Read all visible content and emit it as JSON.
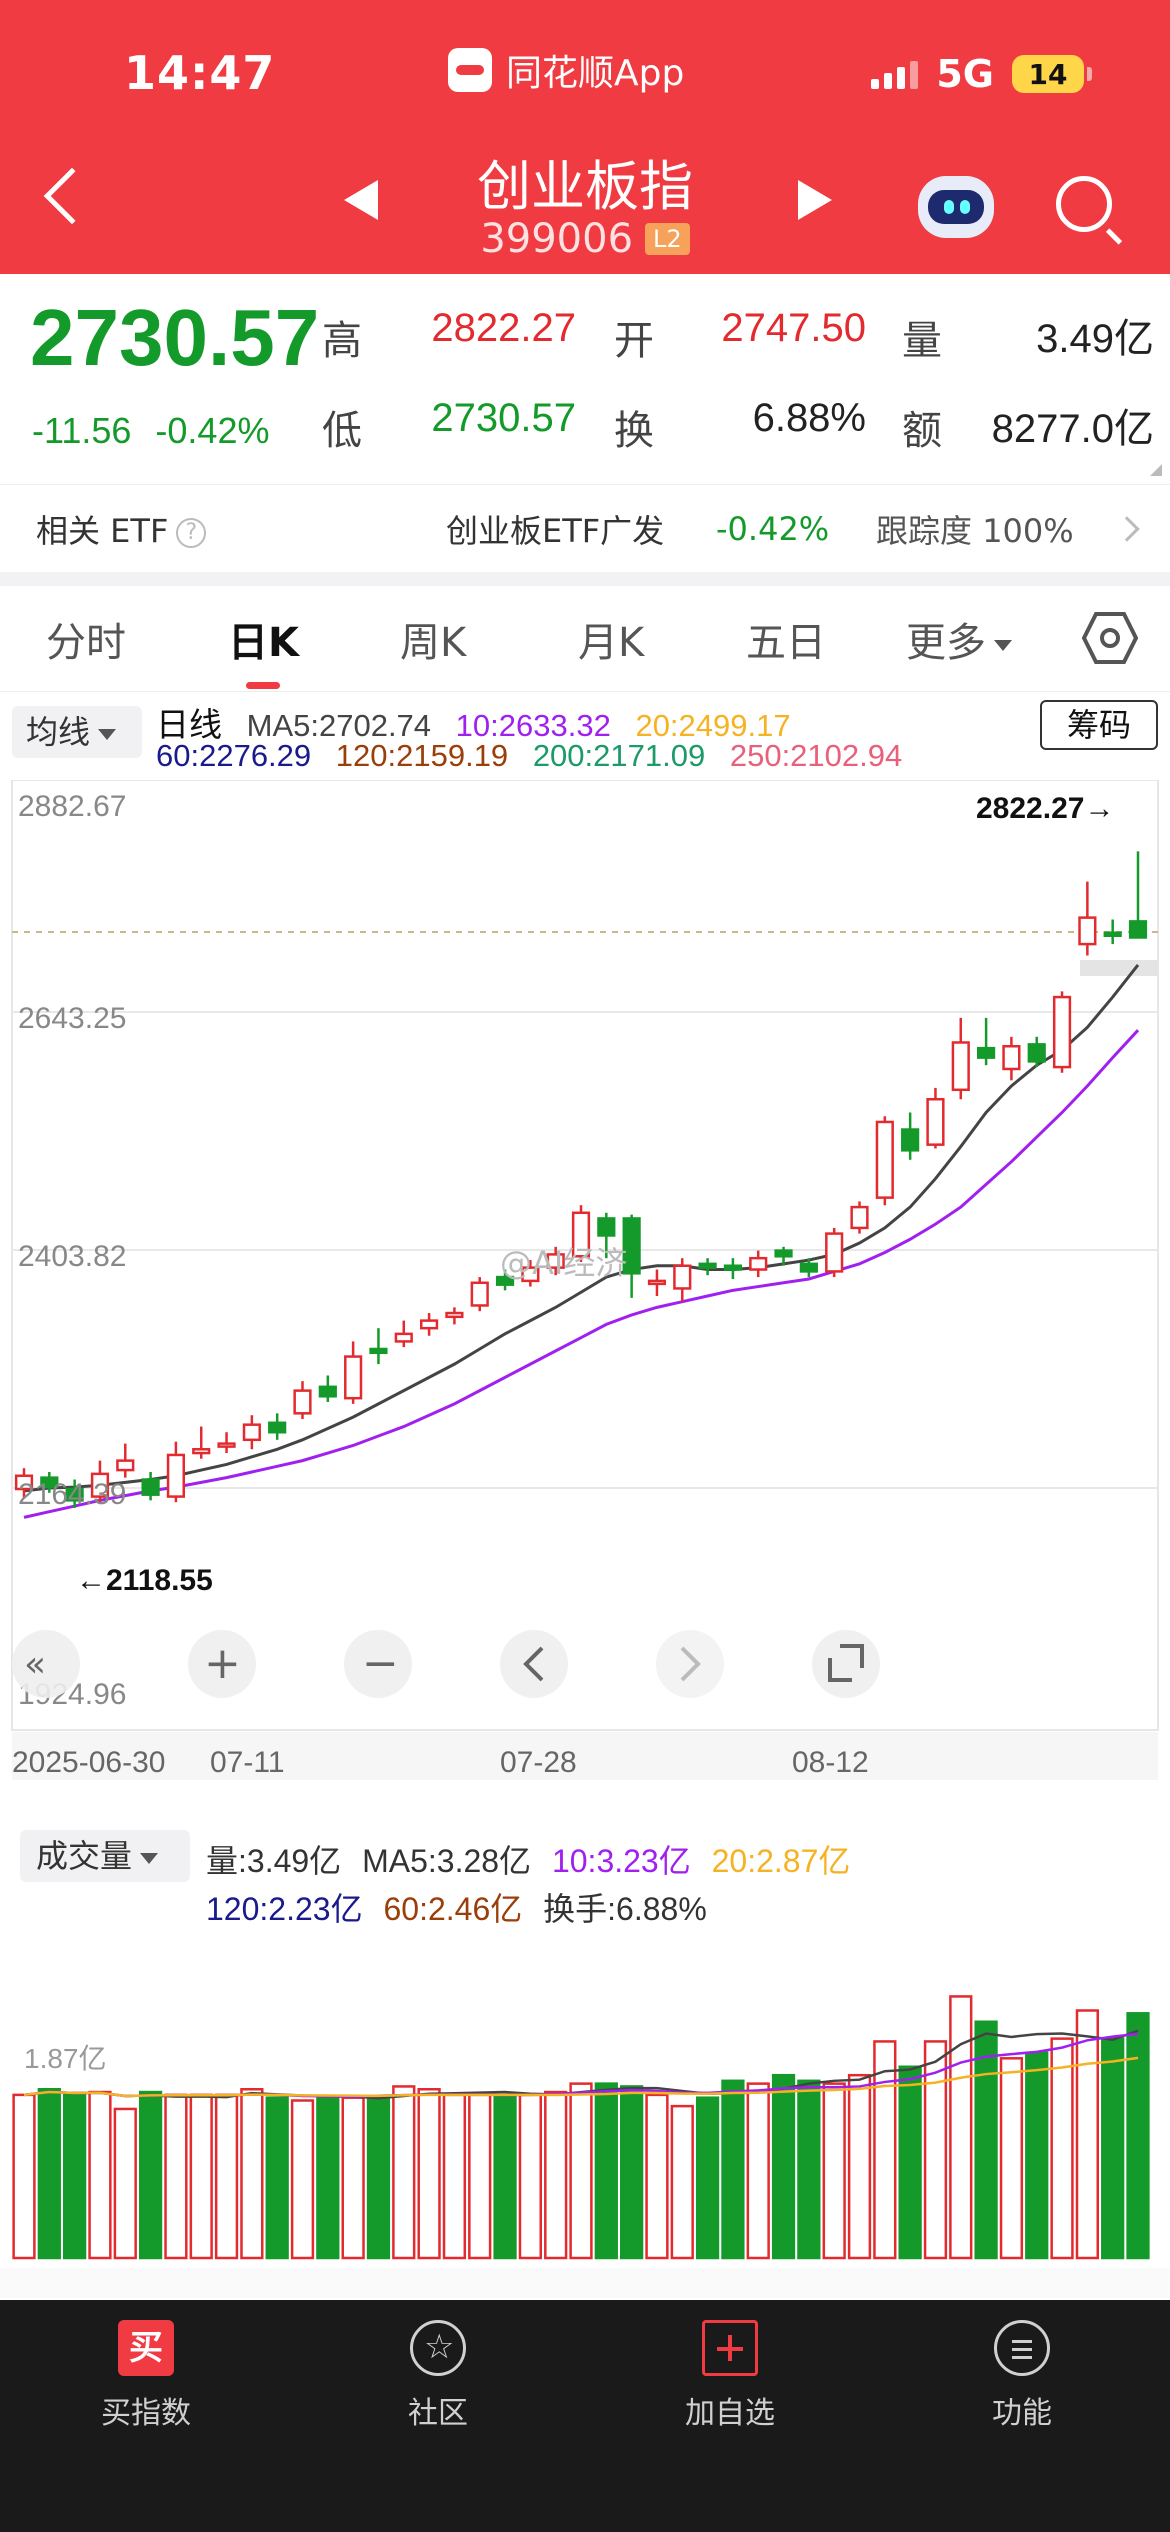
{
  "status": {
    "time": "14:47",
    "app": "同花顺App",
    "network": "5G",
    "battery": "14"
  },
  "header": {
    "name": "创业板指",
    "code": "399006",
    "level": "L2"
  },
  "quote": {
    "price": "2730.57",
    "change": "-11.56",
    "change_pct": "-0.42%",
    "high_label": "高",
    "high": "2822.27",
    "open_label": "开",
    "open": "2747.50",
    "volume_label": "量",
    "volume": "3.49亿",
    "low_label": "低",
    "low": "2730.57",
    "turnover_label": "换",
    "turnover": "6.88%",
    "amount_label": "额",
    "amount": "8277.0亿"
  },
  "etf": {
    "title": "相关 ETF",
    "name": "创业板ETF广发",
    "change": "-0.42%",
    "track_label": "跟踪度",
    "track": "100%"
  },
  "tabs": [
    "分时",
    "日K",
    "周K",
    "月K",
    "五日",
    "更多"
  ],
  "ma_bar": {
    "selector": "均线",
    "period": "日线",
    "ma5": "MA5:2702.74",
    "ma10": "10:2633.32",
    "ma20": "20:2499.17",
    "ma60": "60:2276.29",
    "ma120": "120:2159.19",
    "ma200": "200:2171.09",
    "ma250": "250:2102.94",
    "chip_button": "筹码"
  },
  "colors": {
    "up": "#e22a2f",
    "down": "#149a2a",
    "ma5": "#444444",
    "ma10": "#a020f0",
    "ma20": "#f5b324",
    "ma60": "#1a1a8c",
    "ma120": "#9a3e0a",
    "ma200": "#1c9a6a",
    "ma250": "#e8607a"
  },
  "kline": {
    "y_labels": [
      "2882.67",
      "2643.25",
      "2403.82",
      "2164.39",
      "1924.96"
    ],
    "max_label": "2822.27→",
    "min_label": "←2118.55",
    "x_labels": [
      "2025-06-30",
      "07-11",
      "07-28",
      "08-12"
    ],
    "watermark": "@AI经济"
  },
  "chart_data": {
    "type": "candlestick",
    "x_labels": [
      "2025-06-30",
      "07-11",
      "07-28",
      "08-12"
    ],
    "ylim": [
      1924.96,
      2882.67
    ],
    "candles": [
      {
        "o": 2148,
        "c": 2162,
        "h": 2170,
        "l": 2138
      },
      {
        "o": 2160,
        "c": 2150,
        "h": 2166,
        "l": 2144
      },
      {
        "o": 2148,
        "c": 2136,
        "h": 2158,
        "l": 2128
      },
      {
        "o": 2140,
        "c": 2164,
        "h": 2178,
        "l": 2132
      },
      {
        "o": 2168,
        "c": 2178,
        "h": 2196,
        "l": 2160
      },
      {
        "o": 2158,
        "c": 2142,
        "h": 2166,
        "l": 2136
      },
      {
        "o": 2140,
        "c": 2184,
        "h": 2198,
        "l": 2134
      },
      {
        "o": 2186,
        "c": 2190,
        "h": 2214,
        "l": 2180
      },
      {
        "o": 2194,
        "c": 2196,
        "h": 2208,
        "l": 2186
      },
      {
        "o": 2200,
        "c": 2216,
        "h": 2226,
        "l": 2190
      },
      {
        "o": 2218,
        "c": 2208,
        "h": 2228,
        "l": 2200
      },
      {
        "o": 2228,
        "c": 2252,
        "h": 2262,
        "l": 2222
      },
      {
        "o": 2256,
        "c": 2246,
        "h": 2268,
        "l": 2240
      },
      {
        "o": 2244,
        "c": 2288,
        "h": 2304,
        "l": 2238
      },
      {
        "o": 2296,
        "c": 2292,
        "h": 2318,
        "l": 2280
      },
      {
        "o": 2304,
        "c": 2312,
        "h": 2326,
        "l": 2298
      },
      {
        "o": 2318,
        "c": 2326,
        "h": 2334,
        "l": 2310
      },
      {
        "o": 2330,
        "c": 2334,
        "h": 2340,
        "l": 2322
      },
      {
        "o": 2342,
        "c": 2366,
        "h": 2372,
        "l": 2336
      },
      {
        "o": 2372,
        "c": 2364,
        "h": 2380,
        "l": 2358
      },
      {
        "o": 2368,
        "c": 2382,
        "h": 2390,
        "l": 2362
      },
      {
        "o": 2382,
        "c": 2396,
        "h": 2404,
        "l": 2374
      },
      {
        "o": 2394,
        "c": 2440,
        "h": 2448,
        "l": 2388
      },
      {
        "o": 2434,
        "c": 2416,
        "h": 2440,
        "l": 2392
      },
      {
        "o": 2434,
        "c": 2376,
        "h": 2438,
        "l": 2350
      },
      {
        "o": 2368,
        "c": 2368,
        "h": 2380,
        "l": 2352
      },
      {
        "o": 2360,
        "c": 2384,
        "h": 2392,
        "l": 2346
      },
      {
        "o": 2386,
        "c": 2382,
        "h": 2392,
        "l": 2374
      },
      {
        "o": 2384,
        "c": 2380,
        "h": 2392,
        "l": 2370
      },
      {
        "o": 2380,
        "c": 2392,
        "h": 2400,
        "l": 2372
      },
      {
        "o": 2400,
        "c": 2394,
        "h": 2404,
        "l": 2384
      },
      {
        "o": 2386,
        "c": 2378,
        "h": 2392,
        "l": 2372
      },
      {
        "o": 2378,
        "c": 2418,
        "h": 2424,
        "l": 2372
      },
      {
        "o": 2424,
        "c": 2446,
        "h": 2452,
        "l": 2418
      },
      {
        "o": 2456,
        "c": 2536,
        "h": 2542,
        "l": 2448
      },
      {
        "o": 2528,
        "c": 2506,
        "h": 2546,
        "l": 2496
      },
      {
        "o": 2512,
        "c": 2560,
        "h": 2572,
        "l": 2508
      },
      {
        "o": 2570,
        "c": 2620,
        "h": 2646,
        "l": 2560
      },
      {
        "o": 2614,
        "c": 2604,
        "h": 2646,
        "l": 2596
      },
      {
        "o": 2592,
        "c": 2616,
        "h": 2626,
        "l": 2580
      },
      {
        "o": 2618,
        "c": 2600,
        "h": 2626,
        "l": 2594
      },
      {
        "o": 2594,
        "c": 2668,
        "h": 2674,
        "l": 2588
      },
      {
        "o": 2724,
        "c": 2752,
        "h": 2790,
        "l": 2712
      },
      {
        "o": 2736,
        "c": 2734,
        "h": 2750,
        "l": 2724
      },
      {
        "o": 2748,
        "c": 2731,
        "h": 2822,
        "l": 2731
      }
    ],
    "ma_series": [
      {
        "name": "MA5",
        "values": [
          2146,
          2149,
          2150,
          2152,
          2155,
          2158,
          2162,
          2168,
          2174,
          2182,
          2190,
          2200,
          2212,
          2224,
          2238,
          2252,
          2266,
          2280,
          2296,
          2312,
          2326,
          2340,
          2356,
          2372,
          2380,
          2384,
          2384,
          2380,
          2380,
          2382,
          2386,
          2390,
          2396,
          2408,
          2424,
          2446,
          2476,
          2510,
          2546,
          2574,
          2596,
          2612,
          2636,
          2668,
          2702
        ]
      },
      {
        "name": "MA10",
        "values": [
          2118,
          2124,
          2130,
          2136,
          2141,
          2146,
          2150,
          2155,
          2160,
          2166,
          2172,
          2178,
          2186,
          2194,
          2204,
          2214,
          2226,
          2238,
          2252,
          2266,
          2280,
          2294,
          2308,
          2322,
          2332,
          2340,
          2346,
          2352,
          2358,
          2362,
          2366,
          2370,
          2378,
          2386,
          2398,
          2412,
          2428,
          2446,
          2470,
          2494,
          2520,
          2546,
          2574,
          2604,
          2633
        ]
      }
    ],
    "volume": {
      "labels": [
        "量:3.49亿",
        "MA5:3.28亿",
        "10:3.23亿",
        "20:2.87亿",
        "120:2.23亿",
        "60:2.46亿",
        "换手:6.88%"
      ],
      "y_label": "1.87亿",
      "values": [
        2.9,
        3.0,
        2.9,
        2.95,
        2.65,
        2.95,
        2.9,
        2.9,
        2.9,
        3.0,
        2.85,
        2.8,
        2.85,
        2.85,
        2.85,
        3.05,
        3.0,
        2.9,
        2.9,
        2.9,
        2.9,
        2.95,
        3.1,
        3.1,
        3.05,
        2.9,
        2.7,
        2.85,
        3.15,
        3.1,
        3.25,
        3.15,
        3.1,
        3.25,
        3.85,
        3.4,
        3.85,
        4.65,
        4.2,
        3.55,
        3.65,
        3.9,
        4.4,
        3.9,
        4.35
      ]
    }
  },
  "volume_bar": {
    "selector": "成交量"
  },
  "nav": {
    "buy": "买指数",
    "buy_icon": "买",
    "community": "社区",
    "add": "加自选",
    "func": "功能"
  }
}
